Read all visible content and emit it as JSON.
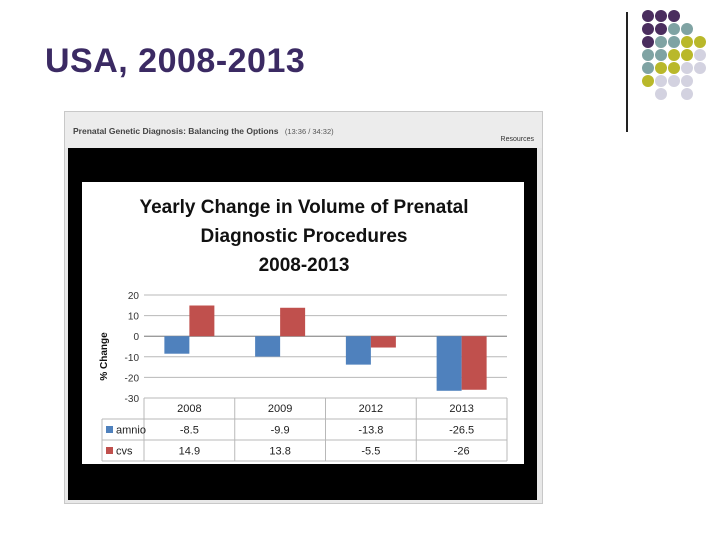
{
  "slide": {
    "title": "USA, 2008-2013"
  },
  "player": {
    "title": "Prenatal Genetic Diagnosis: Balancing the Options",
    "time": "(13:36 / 34:32)",
    "resources_label": "Resources"
  },
  "decor": {
    "dot_colors": {
      "purple": "#4a2d5e",
      "teal": "#7fa3a3",
      "olive": "#b9b82a",
      "lavender": "#d3d2e0"
    }
  },
  "chart_data": {
    "type": "bar",
    "title_lines": [
      "Yearly Change in Volume of Prenatal",
      "Diagnostic Procedures",
      "2008-2013"
    ],
    "ylabel": "% Change",
    "ylim": [
      -30,
      20
    ],
    "yticks": [
      "20",
      "10",
      "0",
      "-10",
      "-20",
      "-30"
    ],
    "categories": [
      "2008",
      "2009",
      "2012",
      "2013"
    ],
    "series": [
      {
        "name": "amnio",
        "color": "#4f81bd",
        "values": [
          -8.5,
          -9.9,
          -13.8,
          -26.5
        ],
        "labels": [
          "-8.5",
          "-9.9",
          "-13.8",
          "-26.5"
        ]
      },
      {
        "name": "cvs",
        "color": "#c0504d",
        "values": [
          14.9,
          13.8,
          -5.5,
          -26
        ],
        "labels": [
          "14.9",
          "13.8",
          "-5.5",
          "-26"
        ]
      }
    ]
  }
}
